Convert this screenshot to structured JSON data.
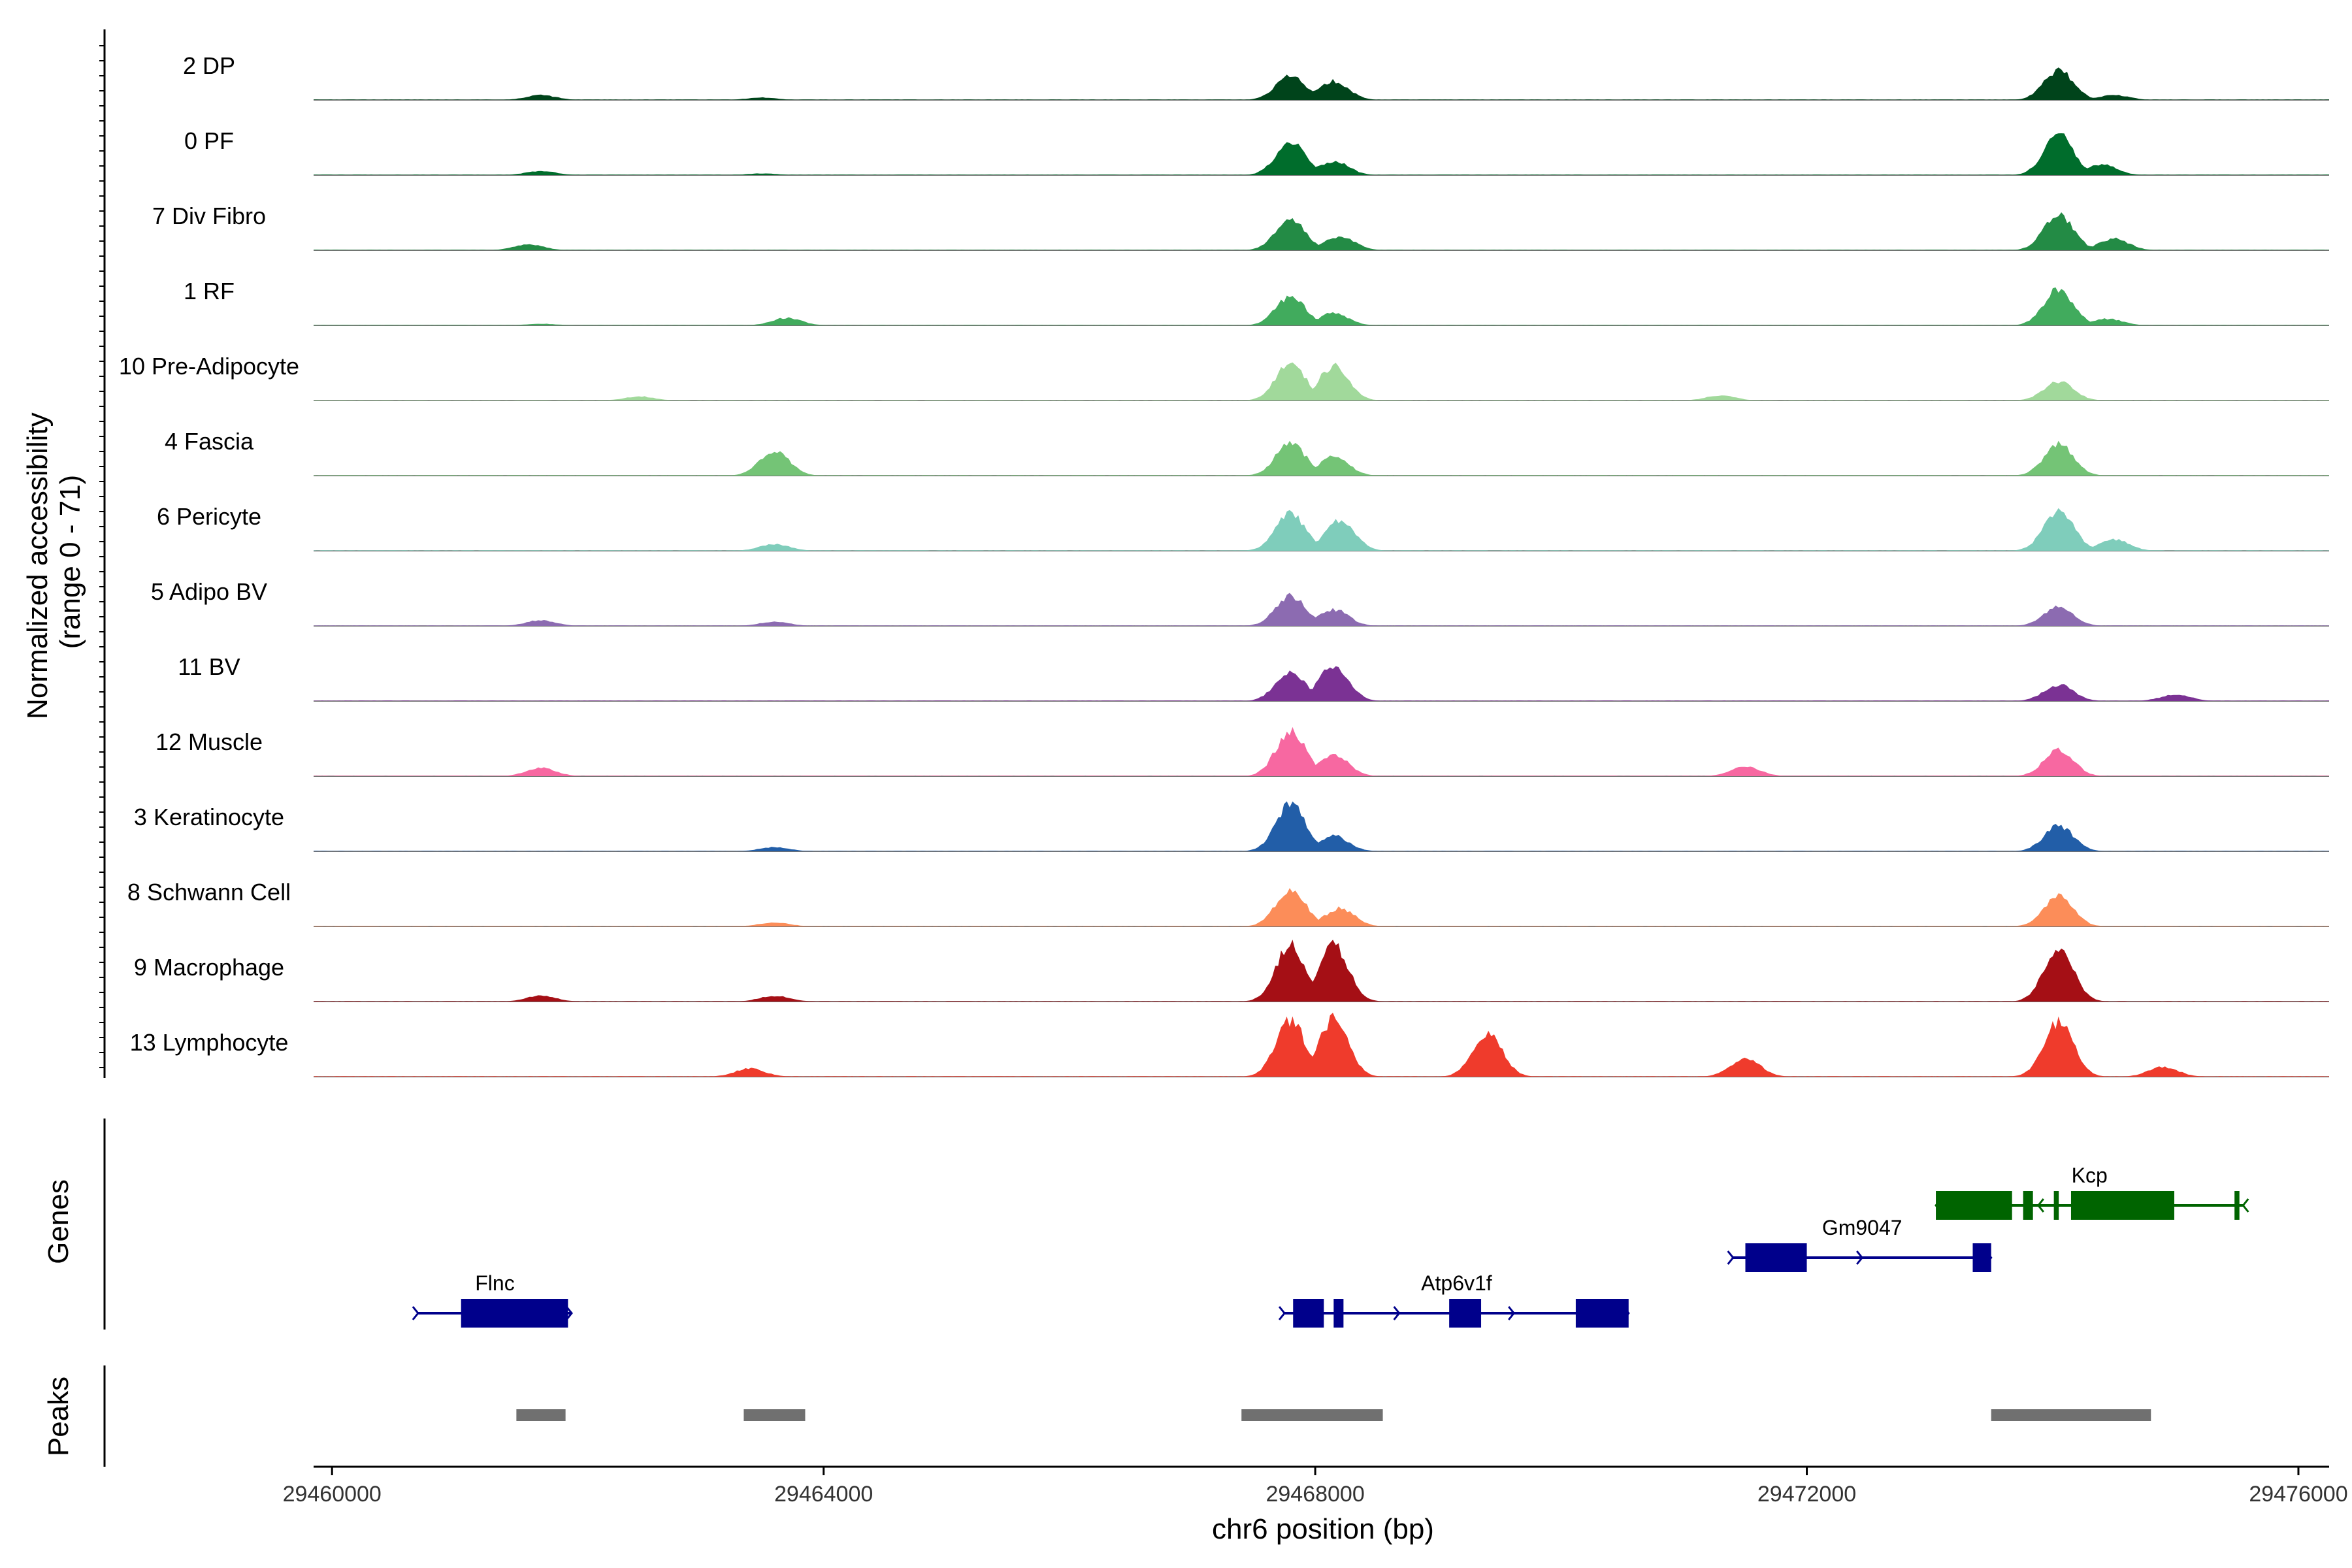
{
  "chart_data": {
    "type": "area",
    "x_range": [
      29459850,
      29476250
    ],
    "y_range": [
      0,
      71
    ],
    "ylabel_lines": [
      "Normalized accessibility",
      "(range 0 - 71)"
    ],
    "xlabel": "chr6 position (bp)",
    "x_ticks": [
      29460000,
      29464000,
      29468000,
      29472000,
      29476000
    ],
    "x_tick_labels": [
      "29460000",
      "29464000",
      "29468000",
      "29472000",
      "29476000"
    ],
    "tracks_label": "",
    "genes_label": "Genes",
    "peaks_label": "Peaks",
    "series": [
      {
        "name": "2 DP",
        "color": "#00441b",
        "points": [
          [
            29461700,
            6
          ],
          [
            29463500,
            3
          ],
          [
            29467800,
            30
          ],
          [
            29468150,
            23
          ],
          [
            29474050,
            36
          ],
          [
            29474500,
            6
          ]
        ]
      },
      {
        "name": "0 PF",
        "color": "#006d2c",
        "points": [
          [
            29461700,
            5
          ],
          [
            29463500,
            2
          ],
          [
            29467800,
            40
          ],
          [
            29468150,
            17
          ],
          [
            29474050,
            49
          ],
          [
            29474400,
            13
          ]
        ]
      },
      {
        "name": "7 Div Fibro",
        "color": "#238b45",
        "points": [
          [
            29461600,
            7
          ],
          [
            29467800,
            38
          ],
          [
            29468200,
            17
          ],
          [
            29474050,
            44
          ],
          [
            29474500,
            14
          ]
        ]
      },
      {
        "name": "1 RF",
        "color": "#41ab5d",
        "points": [
          [
            29461700,
            2
          ],
          [
            29463700,
            9
          ],
          [
            29467800,
            35
          ],
          [
            29468150,
            15
          ],
          [
            29474050,
            44
          ],
          [
            29474450,
            8
          ]
        ]
      },
      {
        "name": "10 Pre-Adipocyte",
        "color": "#a1d99b",
        "points": [
          [
            29462500,
            5
          ],
          [
            29467800,
            45
          ],
          [
            29468150,
            42
          ],
          [
            29471300,
            6
          ],
          [
            29474050,
            23
          ]
        ]
      },
      {
        "name": "4 Fascia",
        "color": "#74c476",
        "points": [
          [
            29463600,
            30
          ],
          [
            29467800,
            40
          ],
          [
            29468150,
            23
          ],
          [
            29474050,
            38
          ]
        ]
      },
      {
        "name": "6 Pericyte",
        "color": "#7fcdbb",
        "points": [
          [
            29463600,
            8
          ],
          [
            29467800,
            45
          ],
          [
            29468200,
            38
          ],
          [
            29474050,
            50
          ],
          [
            29474500,
            14
          ]
        ]
      },
      {
        "name": "5 Adipo BV",
        "color": "#8c6bb1",
        "points": [
          [
            29461700,
            7
          ],
          [
            29463600,
            5
          ],
          [
            29467800,
            37
          ],
          [
            29468150,
            20
          ],
          [
            29474050,
            23
          ]
        ]
      },
      {
        "name": "11 BV",
        "color": "#7b3294",
        "points": [
          [
            29467800,
            37
          ],
          [
            29468150,
            44
          ],
          [
            29474050,
            20
          ],
          [
            29475000,
            8
          ]
        ]
      },
      {
        "name": "12 Muscle",
        "color": "#f768a1",
        "points": [
          [
            29461700,
            10
          ],
          [
            29467800,
            55
          ],
          [
            29468150,
            26
          ],
          [
            29471500,
            12
          ],
          [
            29474050,
            32
          ]
        ]
      },
      {
        "name": "3 Keratinocyte",
        "color": "#225ea8",
        "points": [
          [
            29463600,
            5
          ],
          [
            29467800,
            58
          ],
          [
            29468150,
            19
          ],
          [
            29474050,
            31
          ]
        ]
      },
      {
        "name": "8 Schwann Cell",
        "color": "#fc8d59",
        "points": [
          [
            29463600,
            5
          ],
          [
            29467800,
            45
          ],
          [
            29468200,
            22
          ],
          [
            29474050,
            36
          ]
        ]
      },
      {
        "name": "9 Macrophage",
        "color": "#a50f15",
        "points": [
          [
            29461700,
            7
          ],
          [
            29463600,
            7
          ],
          [
            29467800,
            69
          ],
          [
            29468150,
            70
          ],
          [
            29474050,
            64
          ]
        ]
      },
      {
        "name": "13 Lymphocyte",
        "color": "#ef3b2c",
        "points": [
          [
            29463400,
            10
          ],
          [
            29467800,
            68
          ],
          [
            29468150,
            70
          ],
          [
            29469400,
            53
          ],
          [
            29471500,
            23
          ],
          [
            29474050,
            66
          ],
          [
            29474900,
            12
          ]
        ]
      }
    ],
    "genes": [
      {
        "name": "Flnc",
        "strand": "+",
        "color": "#00008b",
        "start": 29460700,
        "end": 29461950,
        "exons": [
          [
            29461050,
            29461920
          ]
        ]
      },
      {
        "name": "Atp6v1f",
        "strand": "+",
        "color": "#00008b",
        "start": 29467750,
        "end": 29470550,
        "exons": [
          [
            29467820,
            29468070
          ],
          [
            29468150,
            29468230
          ],
          [
            29469090,
            29469350
          ],
          [
            29470120,
            29470550
          ]
        ]
      },
      {
        "name": "Gm9047",
        "strand": "+",
        "color": "#00008b",
        "start": 29471400,
        "end": 29473500,
        "exons": [
          [
            29471500,
            29472000
          ],
          [
            29473350,
            29473500
          ]
        ]
      },
      {
        "name": "Kcp",
        "strand": "-",
        "color": "#006400",
        "start": 29473050,
        "end": 29475550,
        "exons": [
          [
            29473050,
            29473670
          ],
          [
            29473760,
            29473840
          ],
          [
            29474010,
            29474050
          ],
          [
            29474150,
            29474990
          ],
          [
            29475480,
            29475520
          ]
        ]
      }
    ],
    "peaks": [
      [
        29461500,
        29461900
      ],
      [
        29463350,
        29463850
      ],
      [
        29467400,
        29468550
      ],
      [
        29473500,
        29474800
      ]
    ]
  }
}
